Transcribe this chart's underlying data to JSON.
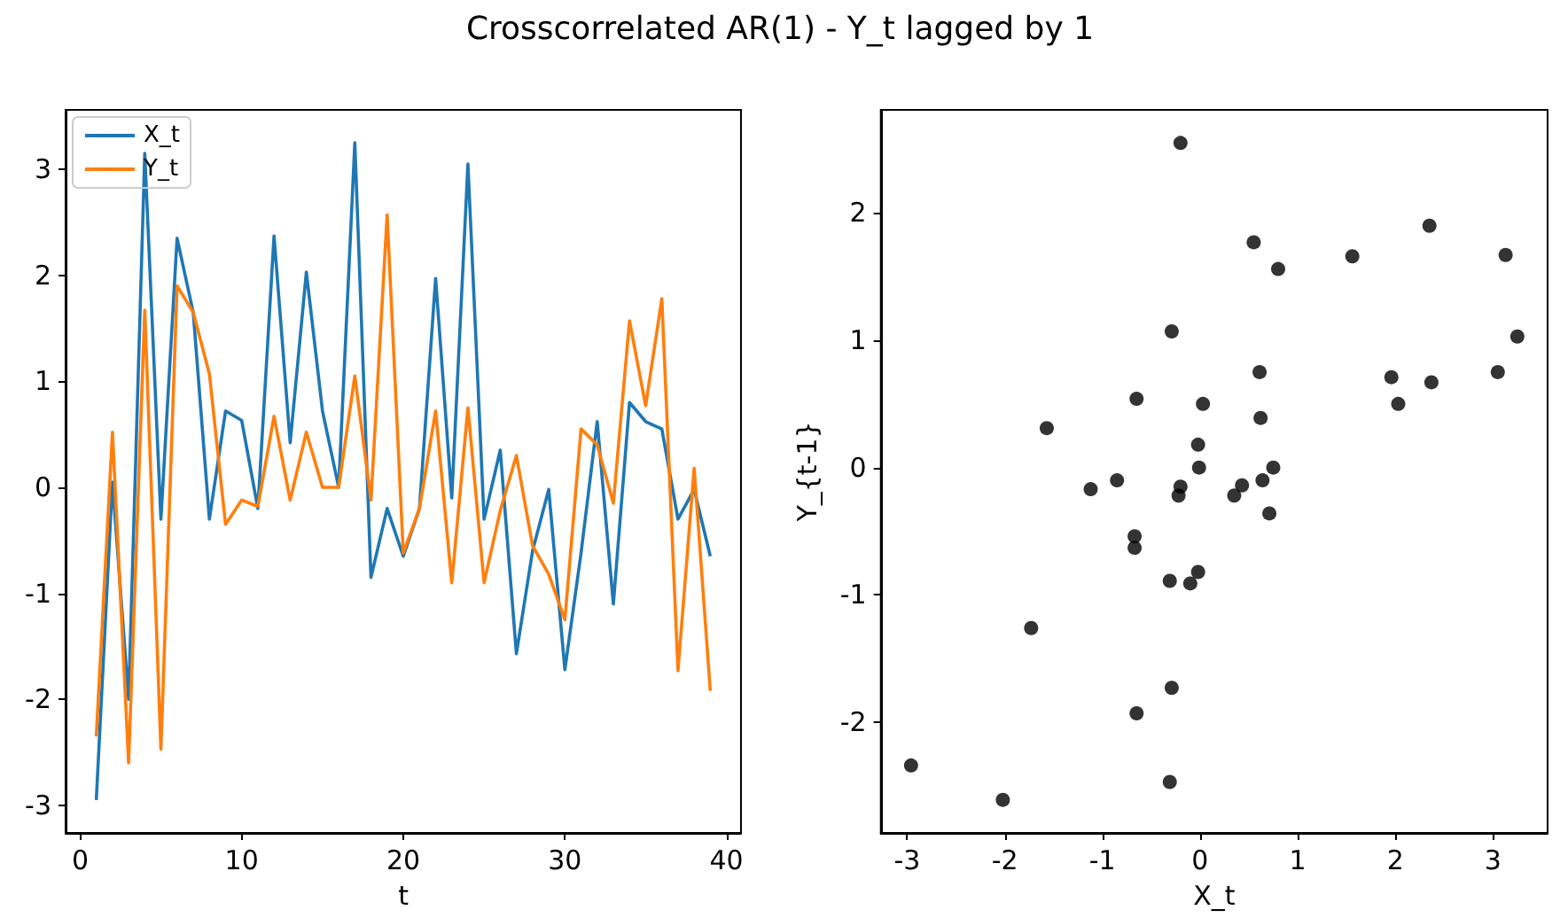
{
  "chart_data": [
    {
      "type": "line",
      "title": "Crosscorrelated AR(1) - Y_t lagged by 1",
      "xlabel": "t",
      "x": [
        1,
        2,
        3,
        4,
        5,
        6,
        7,
        8,
        9,
        10,
        11,
        12,
        13,
        14,
        15,
        16,
        17,
        18,
        19,
        20,
        21,
        22,
        23,
        24,
        25,
        26,
        27,
        28,
        29,
        30,
        31,
        32,
        33,
        34,
        35,
        36,
        37,
        38,
        39
      ],
      "series": [
        {
          "name": "X_t",
          "color": "#1f77b4",
          "values": [
            -2.95,
            0.05,
            -2.0,
            3.15,
            -0.3,
            2.35,
            1.65,
            -0.3,
            0.72,
            0.63,
            -0.2,
            2.37,
            0.42,
            2.03,
            0.72,
            0.0,
            3.25,
            -0.85,
            -0.2,
            -0.65,
            -0.2,
            1.97,
            -0.1,
            3.05,
            -0.3,
            0.35,
            -1.57,
            -0.6,
            -0.02,
            -1.72,
            -0.62,
            0.62,
            -1.1,
            0.8,
            0.62,
            0.55,
            -0.3,
            -0.02,
            -0.65
          ]
        },
        {
          "name": "Y_t",
          "color": "#ff7f0e",
          "values": [
            -2.35,
            0.52,
            -2.6,
            1.67,
            -2.47,
            1.9,
            1.65,
            1.07,
            -0.35,
            -0.12,
            -0.18,
            0.67,
            -0.12,
            0.52,
            0.0,
            0.0,
            1.05,
            -0.12,
            2.57,
            -0.62,
            -0.2,
            0.72,
            -0.9,
            0.75,
            -0.9,
            -0.22,
            0.3,
            -0.55,
            -0.82,
            -1.25,
            0.55,
            0.4,
            -0.15,
            1.57,
            0.77,
            1.78,
            -1.73,
            0.18,
            -1.92
          ]
        }
      ],
      "xlim": [
        -0.9,
        40.9
      ],
      "ylim": [
        -3.26,
        3.56
      ],
      "xticks": [
        0,
        10,
        20,
        30,
        40
      ],
      "yticks": [
        -3,
        -2,
        -1,
        0,
        1,
        2,
        3
      ],
      "grid": false,
      "legend": "top left",
      "marker": "none",
      "line_style": "solid"
    },
    {
      "type": "scatter",
      "xlabel": "X_t",
      "ylabel": "Y_{t-1}",
      "color": "#000000",
      "marker": "circle",
      "grid": false,
      "legend": false,
      "x": [
        -0.2,
        0.55,
        0.8,
        1.56,
        2.35,
        3.13,
        3.25,
        -0.29,
        0.61,
        1.96,
        2.37,
        3.05,
        2.03,
        -0.65,
        0.03,
        0.62,
        -1.57,
        -0.02,
        -0.01,
        0.75,
        -0.85,
        -1.12,
        -0.2,
        -0.22,
        0.43,
        0.35,
        0.64,
        0.71,
        -0.67,
        -0.67,
        -0.02,
        -0.31,
        -0.1,
        -1.73,
        -0.29,
        -0.65,
        -2.96,
        -2.02,
        -0.31
      ],
      "values": [
        2.55,
        1.77,
        1.56,
        1.66,
        1.9,
        1.67,
        1.03,
        1.07,
        0.75,
        0.71,
        0.67,
        0.75,
        0.5,
        0.54,
        0.5,
        0.39,
        0.31,
        0.18,
        0.0,
        0.0,
        -0.1,
        -0.17,
        -0.15,
        -0.22,
        -0.14,
        -0.22,
        -0.1,
        -0.36,
        -0.54,
        -0.63,
        -0.82,
        -0.89,
        -0.91,
        -1.26,
        -1.73,
        -1.93,
        -2.34,
        -2.61,
        -2.47
      ],
      "xlim": [
        -3.27,
        3.56
      ],
      "ylim": [
        -2.87,
        2.81
      ],
      "xticks": [
        -3,
        -2,
        -1,
        0,
        1,
        2,
        3
      ],
      "yticks": [
        -2,
        -1,
        0,
        1,
        2
      ]
    }
  ]
}
